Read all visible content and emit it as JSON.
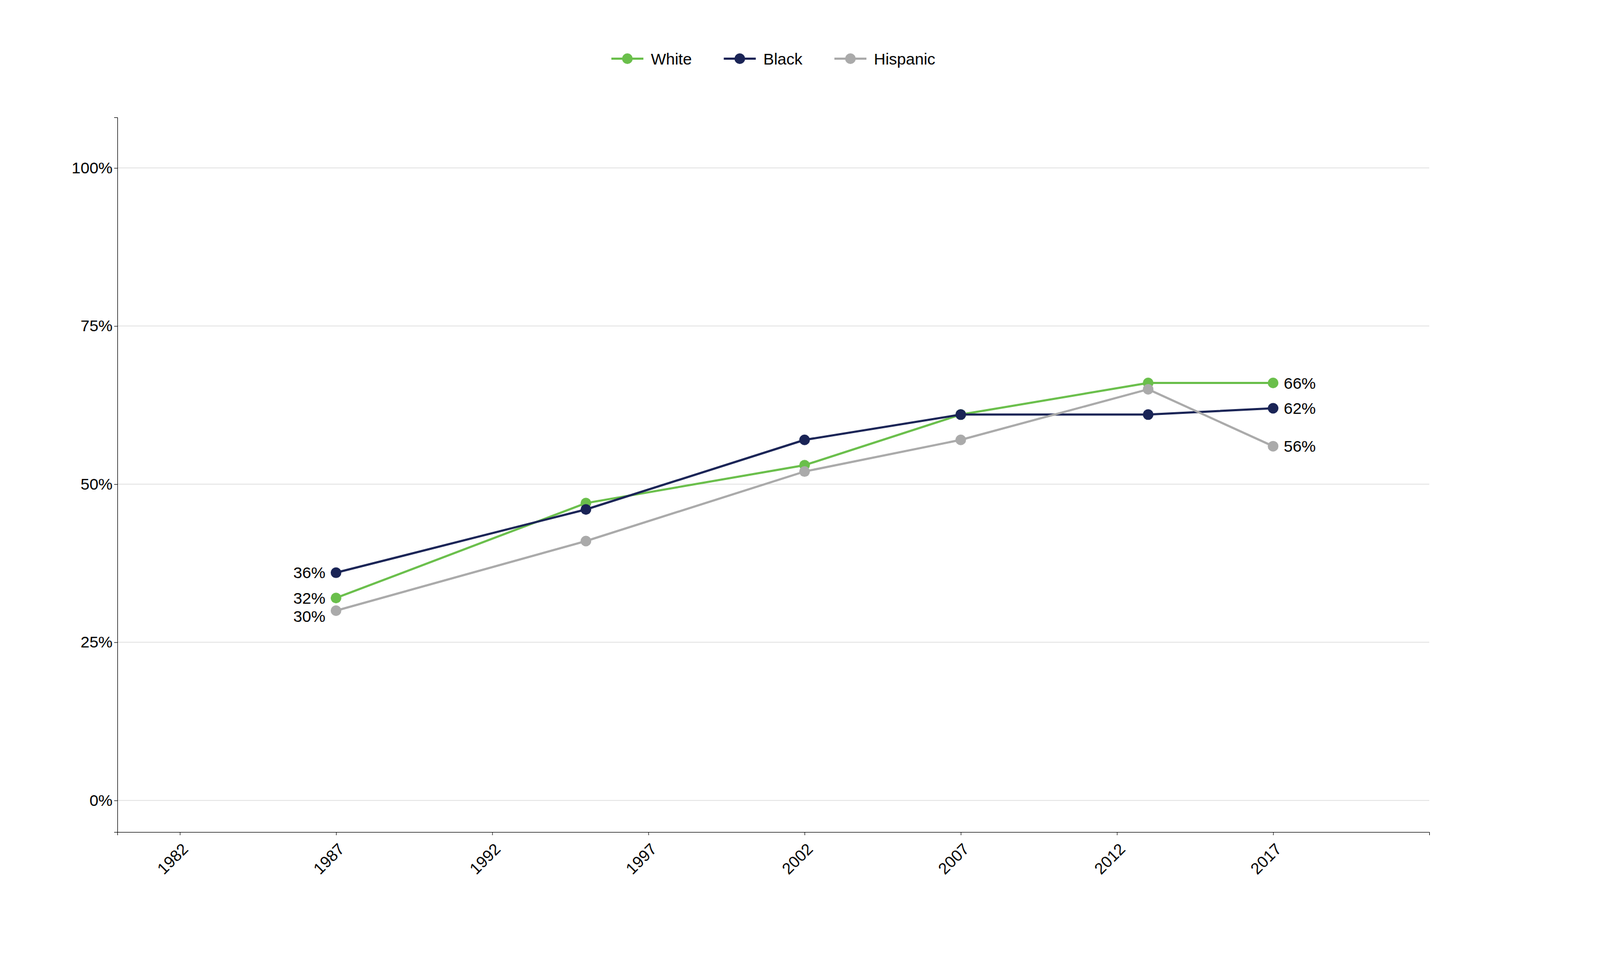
{
  "chart_data": {
    "type": "line",
    "x": [
      1987,
      1995,
      2002,
      2007,
      2013,
      2017
    ],
    "series": [
      {
        "name": "White",
        "color": "#6abf4b",
        "marker": "circle",
        "values": [
          0.32,
          0.47,
          0.53,
          0.61,
          0.66,
          0.66
        ]
      },
      {
        "name": "Black",
        "color": "#1a2456",
        "marker": "circle",
        "values": [
          0.36,
          0.46,
          0.57,
          0.61,
          0.61,
          0.62
        ]
      },
      {
        "name": "Hispanic",
        "color": "#aaaaaa",
        "marker": "circle",
        "values": [
          0.3,
          0.41,
          0.52,
          0.57,
          0.65,
          0.56
        ]
      }
    ],
    "annotations": [
      {
        "text": "66%",
        "x": 2017,
        "y": 0.66
      },
      {
        "text": "62%",
        "x": 2017,
        "y": 0.62
      },
      {
        "text": "56%",
        "x": 2017,
        "y": 0.56
      },
      {
        "text": "36%",
        "x": 1987,
        "y": 0.36
      },
      {
        "text": "32%",
        "x": 1987,
        "y": 0.32
      },
      {
        "text": "30%",
        "x": 1987,
        "y": 0.3
      }
    ],
    "xlim": [
      1980,
      2022
    ],
    "xticks": [
      1982,
      1987,
      1992,
      1997,
      2002,
      2007,
      2012,
      2017
    ],
    "ylim": [
      -0.05,
      1.08
    ],
    "yticks": [
      {
        "value": 0.0,
        "label": "0%"
      },
      {
        "value": 0.25,
        "label": "25%"
      },
      {
        "value": 0.5,
        "label": "50%"
      },
      {
        "value": 0.75,
        "label": "75%"
      },
      {
        "value": 1.0,
        "label": "100%"
      }
    ],
    "grid": true,
    "legend": "top"
  }
}
